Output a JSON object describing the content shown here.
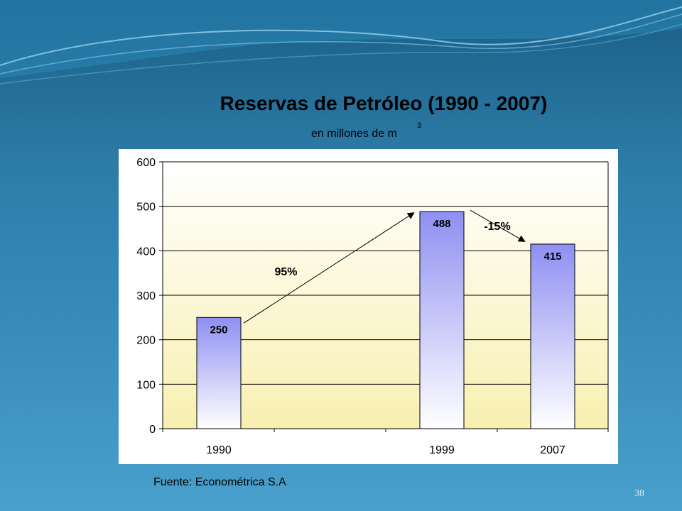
{
  "slide": {
    "title": "Reservas de Petróleo (1990 - 2007)",
    "subtitle": "en millones de m",
    "subtitle_superscript": "3",
    "source": "Fuente: Econométrica S.A",
    "page_number": "38"
  },
  "chart_data": {
    "type": "bar",
    "categories": [
      "1990",
      "1999",
      "2007"
    ],
    "values": [
      250,
      488,
      415
    ],
    "data_labels": [
      "250",
      "488",
      "415"
    ],
    "ylim": [
      0,
      600
    ],
    "yticks": [
      0,
      100,
      200,
      300,
      400,
      500,
      600
    ],
    "grid": true,
    "annotations": [
      {
        "text": "95%",
        "from": "1990",
        "to": "1999"
      },
      {
        "text": "-15%",
        "from": "1999",
        "to": "2007"
      }
    ],
    "colors": {
      "bar_top": "#8f8ff2",
      "bar_bottom": "#ffffff",
      "plot_bg_top": "#ffffff",
      "plot_bg_bottom": "#f8f0b0"
    }
  }
}
